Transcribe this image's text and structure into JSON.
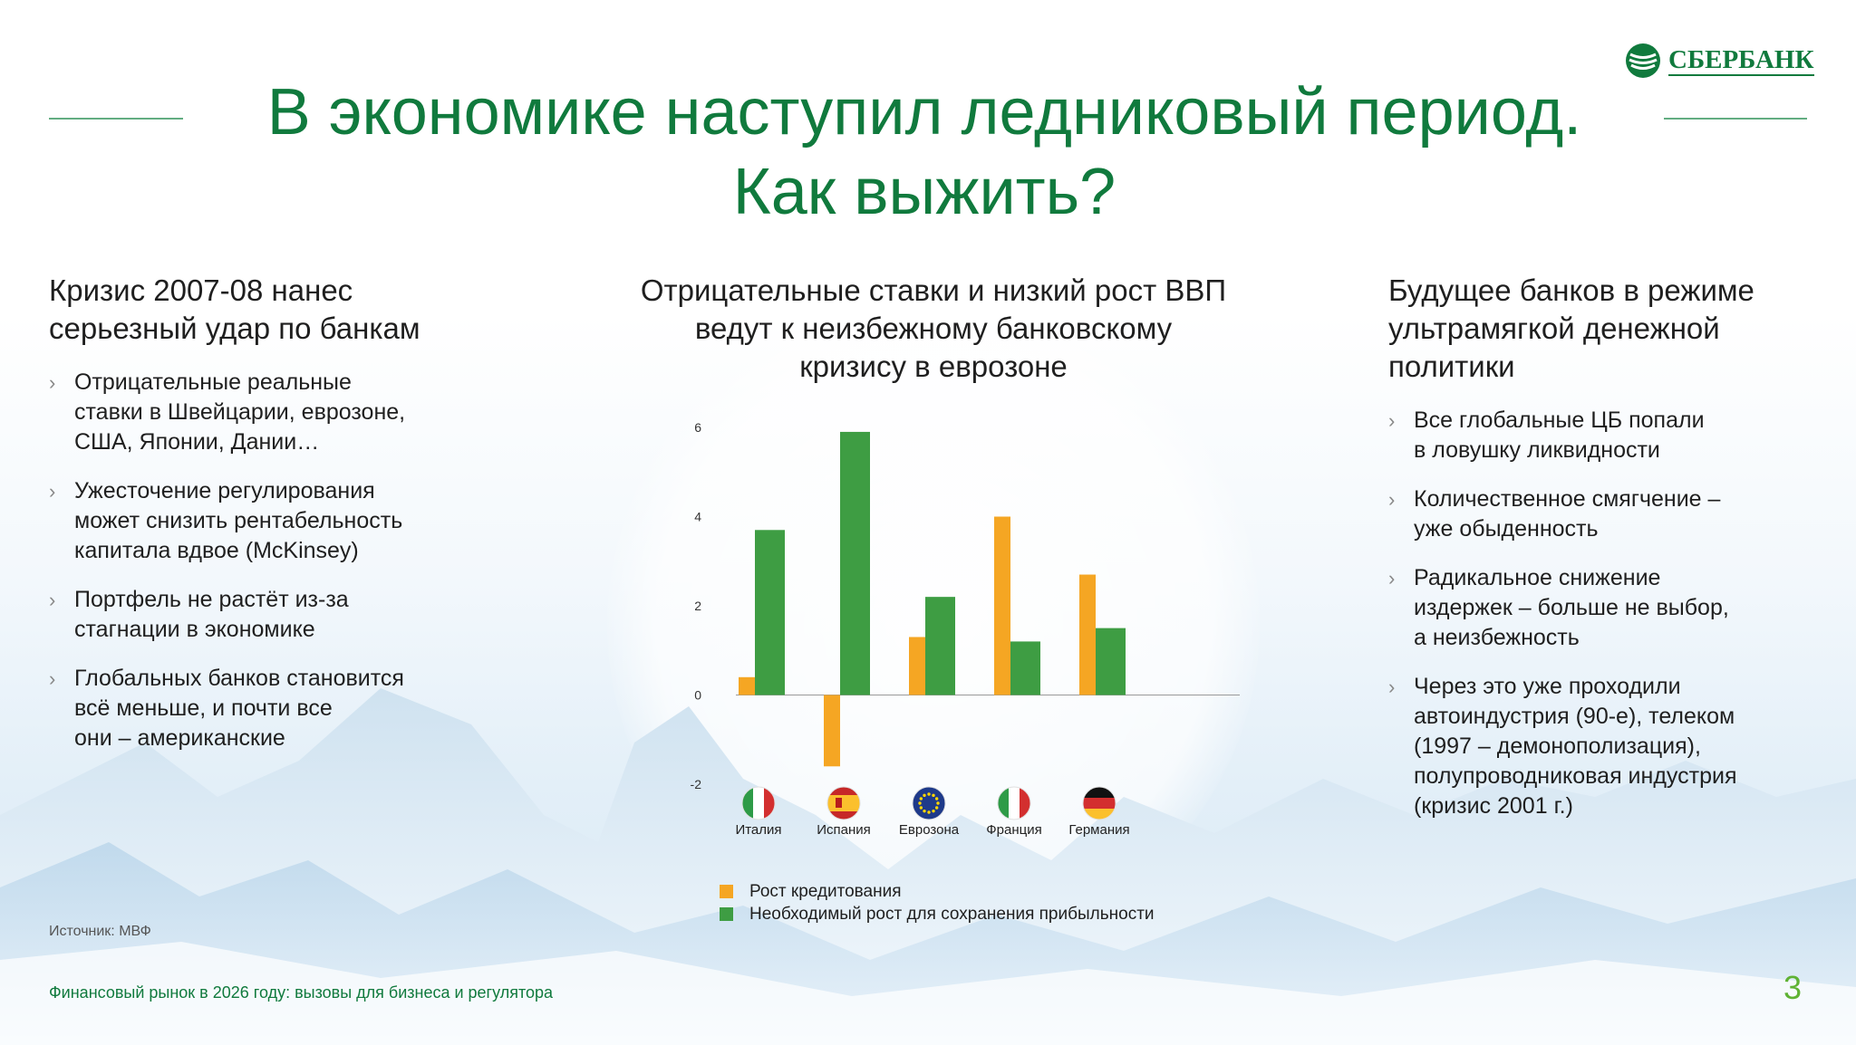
{
  "header": {
    "title_line1": "В экономике наступил ледниковый период.",
    "title_line2": "Как выжить?",
    "logo_text": "СБЕРБАНК",
    "brand_color": "#107a3d"
  },
  "left": {
    "heading_line1": "Кризис 2007-08 нанес",
    "heading_line2": "серьезный удар по банкам",
    "items": [
      {
        "text": "Отрицательные реальные\n  ставки в Швейцарии, еврозоне,\n  США, Японии, Дании…"
      },
      {
        "text": "Ужесточение регулирования\n  может снизить рентабельность\n  капитала вдвое (McKinsey)"
      },
      {
        "text": "Портфель не растёт из-за\n  стагнации в экономике"
      },
      {
        "text": "Глобальных банков становится\n  всё меньше, и почти все\n  они – американские"
      }
    ]
  },
  "center": {
    "heading_line1": "Отрицательные ставки и низкий рост ВВП",
    "heading_line2": "ведут к неизбежному банковскому",
    "heading_line3": "кризису в еврозоне"
  },
  "chart_data": {
    "type": "bar",
    "categories": [
      "Италия",
      "Испания",
      "Еврозона",
      "Франция",
      "Германия"
    ],
    "flags": [
      "italy-flag-icon",
      "spain-flag-icon",
      "eu-flag-icon",
      "france-flag-icon",
      "germany-flag-icon"
    ],
    "series": [
      {
        "name": "Рост кредитования",
        "color": "#f5a623",
        "values": [
          0.4,
          -1.6,
          1.3,
          4.0,
          2.7
        ]
      },
      {
        "name": "Необходимый рост для сохранения прибыльности",
        "color": "#3e9d43",
        "values": [
          3.7,
          5.9,
          2.2,
          1.2,
          1.5
        ]
      }
    ],
    "ylim": [
      -2,
      6
    ],
    "yticks": [
      -2,
      0,
      2,
      4,
      6
    ],
    "grid": false,
    "legend_position": "bottom"
  },
  "right": {
    "heading_line1": "Будущее банков в режиме",
    "heading_line2": "ультрамягкой денежной",
    "heading_line3": "политики",
    "items": [
      {
        "text": "Все глобальные ЦБ попали\n  в ловушку ликвидности"
      },
      {
        "text": "Количественное смягчение –\n  уже обыденность"
      },
      {
        "text": "Радикальное снижение\n  издержек – больше не выбор,\n  а неизбежность"
      },
      {
        "text": "Через это уже проходили\n  автоиндустрия (90-е), телеком\n  (1997 – демонополизация),\n  полупроводниковая индустрия\n  (кризис 2001 г.)"
      }
    ]
  },
  "footer": {
    "source": "Источник: МВФ",
    "caption": "Финансовый рынок в 2026 году:  вызовы для бизнеса и регулятора",
    "page_number": "3"
  }
}
